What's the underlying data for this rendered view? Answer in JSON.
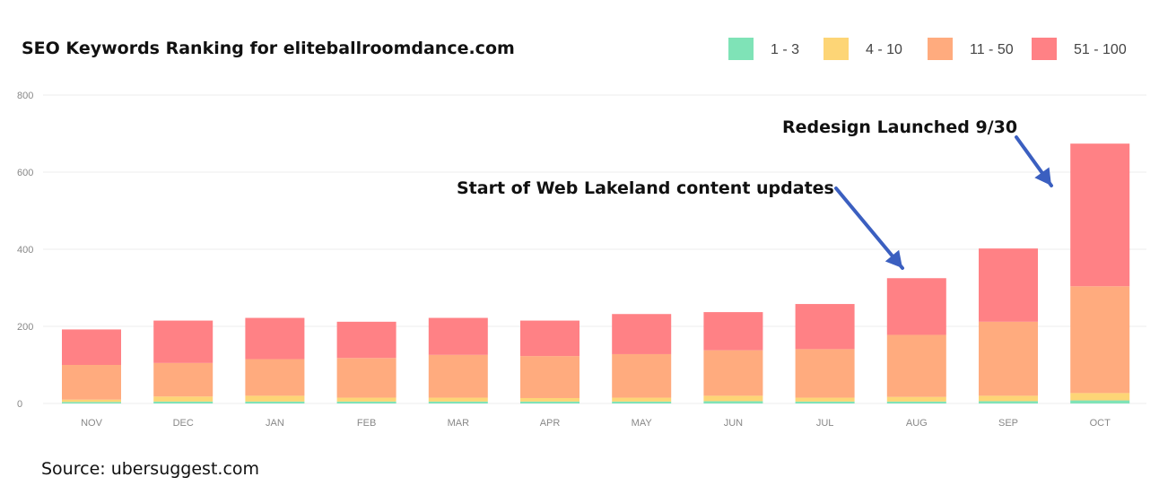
{
  "chart_data": {
    "type": "bar",
    "stacked": true,
    "title": "SEO Keywords Ranking for eliteballroomdance.com",
    "categories": [
      "NOV",
      "DEC",
      "JAN",
      "FEB",
      "MAR",
      "APR",
      "MAY",
      "JUN",
      "JUL",
      "AUG",
      "SEP",
      "OCT"
    ],
    "series": [
      {
        "name": "1 - 3",
        "color": "#7fe3b7",
        "values": [
          4,
          5,
          5,
          5,
          5,
          5,
          5,
          6,
          5,
          5,
          6,
          8
        ]
      },
      {
        "name": "4 - 10",
        "color": "#fdd576",
        "values": [
          6,
          13,
          15,
          10,
          10,
          9,
          10,
          14,
          10,
          12,
          14,
          19
        ]
      },
      {
        "name": "11 - 50",
        "color": "#ffab7e",
        "values": [
          90,
          87,
          95,
          103,
          111,
          109,
          113,
          118,
          126,
          161,
          192,
          277
        ]
      },
      {
        "name": "51 - 100",
        "color": "#ff8185",
        "values": [
          92,
          110,
          107,
          94,
          96,
          92,
          104,
          99,
          117,
          147,
          190,
          370
        ]
      }
    ],
    "ylim": [
      0,
      800
    ],
    "yticks": [
      0,
      200,
      400,
      600,
      800
    ],
    "grid": true,
    "legend_position": "top-right",
    "annotations": [
      {
        "text": "Start of Web Lakeland content updates",
        "points_to": "AUG"
      },
      {
        "text": "Redesign Launched 9/30",
        "points_to": "OCT"
      }
    ],
    "source": "Source: ubersuggest.com"
  },
  "arrow_color": "#3b5fc0"
}
